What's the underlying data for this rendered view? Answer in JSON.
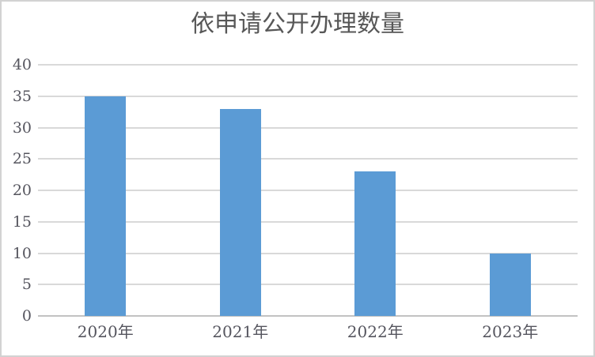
{
  "chart_data": {
    "type": "bar",
    "title": "依申请公开办理数量",
    "categories": [
      "2020年",
      "2021年",
      "2022年",
      "2023年"
    ],
    "values": [
      35,
      33,
      23,
      10
    ],
    "xlabel": "",
    "ylabel": "",
    "ylim": [
      0,
      40
    ],
    "yticks": [
      0,
      5,
      10,
      15,
      20,
      25,
      30,
      35,
      40
    ],
    "grid": "horizontal",
    "legend": "none",
    "colors": {
      "bar": "#5b9bd5",
      "gridline": "#d9d9d9",
      "axis_line": "#c2c2c2",
      "title_text": "#575757",
      "tick_text": "#55555e",
      "frame_border": "#d2d2d2"
    }
  }
}
